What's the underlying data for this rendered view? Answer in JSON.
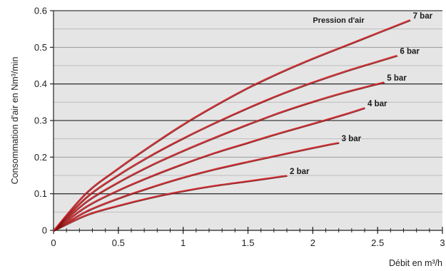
{
  "chart_data": {
    "type": "line",
    "title": "",
    "xlabel": "Débit en m³/h",
    "ylabel": "Consommation d'air en Nm³/min",
    "legend_title": "Pression d'air",
    "xlim": [
      0,
      3
    ],
    "ylim": [
      0,
      0.6
    ],
    "x_ticks": [
      0,
      0.5,
      1,
      1.5,
      2,
      2.5,
      3
    ],
    "y_ticks": [
      0,
      0.1,
      0.2,
      0.3,
      0.4,
      0.5,
      0.6
    ],
    "x_tick_labels": [
      "0",
      "0.5",
      "1",
      "1.5",
      "2",
      "2.5",
      "3"
    ],
    "y_tick_labels": [
      "0",
      "0.1",
      "0.2",
      "0.3",
      "0.4",
      "0.5",
      "0.6"
    ],
    "grid": true,
    "colors": {
      "plot_background": "#e5e5e5",
      "grid_major": "#3a3a3a",
      "grid_minor": "#bdbdbd",
      "series_line": "#d4282e",
      "series_shadow": "#7a1010"
    },
    "series": [
      {
        "name": "2 bar",
        "x": [
          0,
          0.25,
          0.5,
          0.75,
          1.0,
          1.25,
          1.5,
          1.8
        ],
        "y": [
          0,
          0.042,
          0.068,
          0.09,
          0.108,
          0.123,
          0.135,
          0.15
        ]
      },
      {
        "name": "3 bar",
        "x": [
          0,
          0.25,
          0.5,
          0.75,
          1.0,
          1.25,
          1.5,
          1.75,
          2.0,
          2.2
        ],
        "y": [
          0,
          0.052,
          0.088,
          0.118,
          0.145,
          0.168,
          0.188,
          0.207,
          0.226,
          0.24
        ]
      },
      {
        "name": "4 bar",
        "x": [
          0,
          0.25,
          0.5,
          0.75,
          1.0,
          1.25,
          1.5,
          1.75,
          2.0,
          2.25,
          2.4
        ],
        "y": [
          0,
          0.065,
          0.11,
          0.148,
          0.182,
          0.213,
          0.24,
          0.267,
          0.292,
          0.318,
          0.335
        ]
      },
      {
        "name": "5 bar",
        "x": [
          0,
          0.25,
          0.5,
          0.75,
          1.0,
          1.25,
          1.5,
          1.75,
          2.0,
          2.25,
          2.55
        ],
        "y": [
          0,
          0.078,
          0.132,
          0.178,
          0.218,
          0.255,
          0.29,
          0.323,
          0.352,
          0.378,
          0.405
        ]
      },
      {
        "name": "6 bar",
        "x": [
          0,
          0.25,
          0.5,
          0.75,
          1.0,
          1.25,
          1.5,
          1.75,
          2.0,
          2.25,
          2.5,
          2.65
        ],
        "y": [
          0,
          0.09,
          0.152,
          0.205,
          0.252,
          0.295,
          0.335,
          0.372,
          0.405,
          0.435,
          0.462,
          0.478
        ]
      },
      {
        "name": "7 bar",
        "x": [
          0,
          0.25,
          0.5,
          0.75,
          1.0,
          1.25,
          1.5,
          1.75,
          2.0,
          2.25,
          2.5,
          2.75
        ],
        "y": [
          0,
          0.102,
          0.17,
          0.232,
          0.29,
          0.342,
          0.39,
          0.432,
          0.47,
          0.505,
          0.54,
          0.575
        ]
      }
    ]
  }
}
